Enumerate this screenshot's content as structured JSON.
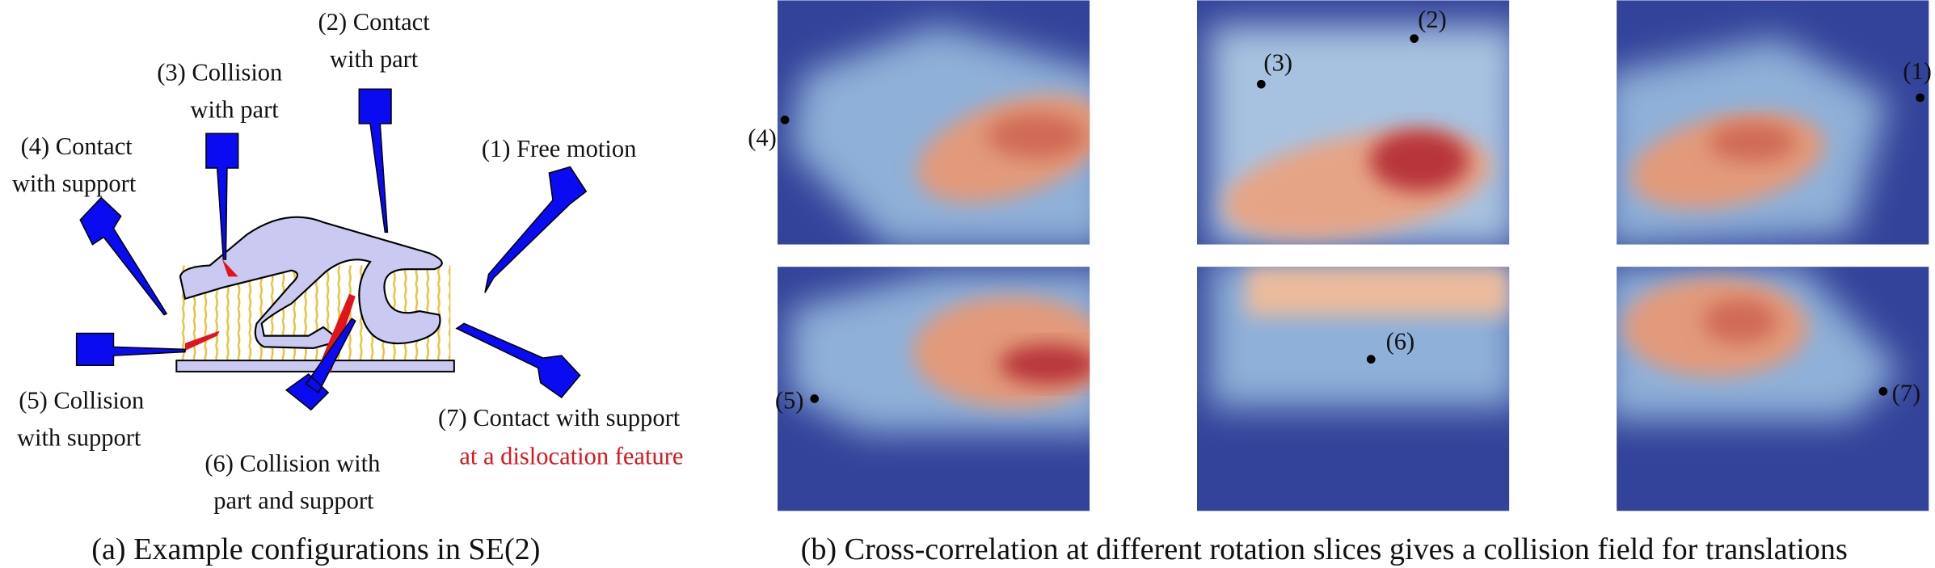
{
  "panel_a": {
    "caption": "(a) Example configurations in SE(2)",
    "labels": [
      {
        "lines": [
          "(1) Free motion"
        ]
      },
      {
        "lines": [
          "(2) Contact",
          "with part"
        ]
      },
      {
        "lines": [
          "(3) Collision",
          "with part"
        ]
      },
      {
        "lines": [
          "(4) Contact",
          "with support"
        ]
      },
      {
        "lines": [
          "(5) Collision",
          "with support"
        ]
      },
      {
        "lines": [
          "(6) Collision with",
          "part and support"
        ]
      },
      {
        "lines": [
          "(7) Contact with support",
          "at a dislocation feature"
        ]
      }
    ]
  },
  "panel_b": {
    "caption": "(b) Cross-correlation at different rotation slices gives a collision field for translations",
    "markers": [
      "(1)",
      "(2)",
      "(3)",
      "(4)",
      "(5)",
      "(6)",
      "(7)"
    ]
  }
}
